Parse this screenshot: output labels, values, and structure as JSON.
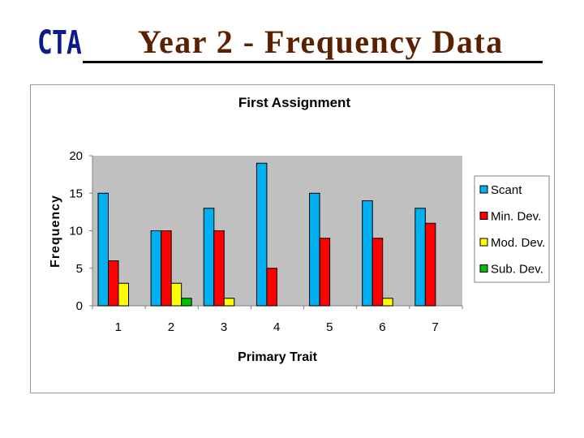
{
  "header": {
    "logo": "CTA",
    "title": "Year 2 - Frequency  Data"
  },
  "colors": {
    "logo": "#0b1a8c",
    "title": "#5a2000",
    "plot_bg": "#c0c0c0"
  },
  "chart_data": {
    "type": "bar",
    "title": "First Assignment",
    "xlabel": "Primary Trait",
    "ylabel": "Frequency",
    "categories": [
      "1",
      "2",
      "3",
      "4",
      "5",
      "6",
      "7"
    ],
    "ylim": [
      0,
      20
    ],
    "yticks": [
      0,
      5,
      10,
      15,
      20
    ],
    "grid": false,
    "legend_position": "right",
    "series": [
      {
        "name": "Scant",
        "color": "#00b0f0",
        "values": [
          15,
          10,
          13,
          19,
          15,
          14,
          13
        ]
      },
      {
        "name": "Min. Dev.",
        "color": "#ff0000",
        "values": [
          6,
          10,
          10,
          5,
          9,
          9,
          11
        ]
      },
      {
        "name": "Mod. Dev.",
        "color": "#ffff00",
        "values": [
          3,
          3,
          1,
          0,
          0,
          1,
          0
        ]
      },
      {
        "name": "Sub. Dev.",
        "color": "#00c000",
        "values": [
          0,
          1,
          0,
          0,
          0,
          0,
          0
        ]
      }
    ]
  }
}
